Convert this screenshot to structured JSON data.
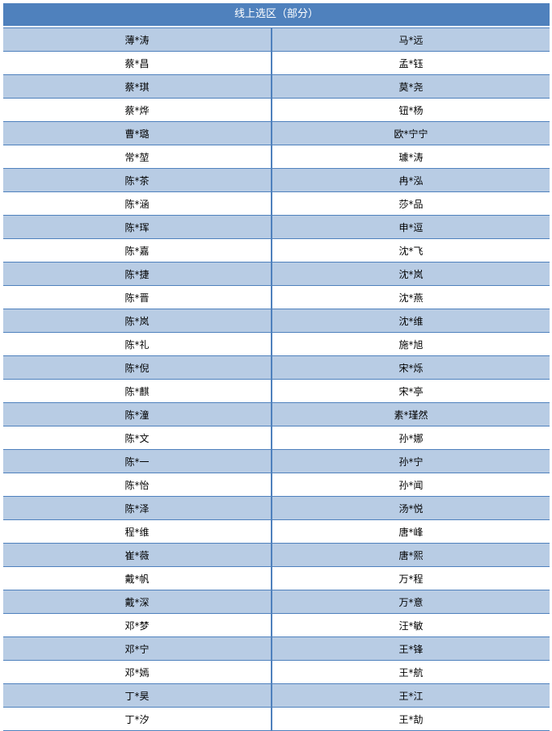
{
  "title": "线上选区（部分）",
  "colors": {
    "header": "#4f81bd",
    "band": "#b8cce4",
    "border": "#4f81bd"
  },
  "rows": [
    [
      "薄*涛",
      "马*远"
    ],
    [
      "蔡*昌",
      "孟*钰"
    ],
    [
      "蔡*琪",
      "莫*尧"
    ],
    [
      "蔡*烨",
      "钮*杨"
    ],
    [
      "曹*璐",
      "欧*宁宁"
    ],
    [
      "常*堃",
      "璩*涛"
    ],
    [
      "陈*茶",
      "冉*泓"
    ],
    [
      "陈*涵",
      "莎*品"
    ],
    [
      "陈*珲",
      "申*逗"
    ],
    [
      "陈*嘉",
      "沈*飞"
    ],
    [
      "陈*捷",
      "沈*岚"
    ],
    [
      "陈*晋",
      "沈*燕"
    ],
    [
      "陈*岚",
      "沈*维"
    ],
    [
      "陈*礼",
      "施*旭"
    ],
    [
      "陈*倪",
      "宋*烁"
    ],
    [
      "陈*麒",
      "宋*亭"
    ],
    [
      "陈*潼",
      "素*瑾然"
    ],
    [
      "陈*文",
      "孙*娜"
    ],
    [
      "陈*一",
      "孙*宁"
    ],
    [
      "陈*怡",
      "孙*闻"
    ],
    [
      "陈*泽",
      "汤*悦"
    ],
    [
      "程*维",
      "唐*峰"
    ],
    [
      "崔*薇",
      "唐*熙"
    ],
    [
      "戴*帆",
      "万*程"
    ],
    [
      "戴*深",
      "万*意"
    ],
    [
      "邓*梦",
      "汪*敏"
    ],
    [
      "邓*宁",
      "王*锋"
    ],
    [
      "邓*嫣",
      "王*航"
    ],
    [
      "丁*昊",
      "王*江"
    ],
    [
      "丁*汐",
      "王*劼"
    ]
  ]
}
